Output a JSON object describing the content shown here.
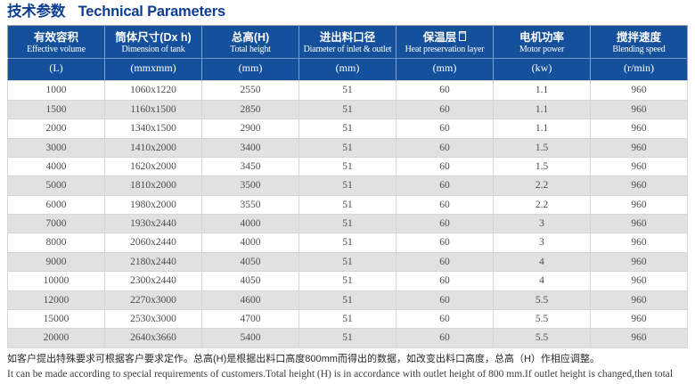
{
  "title": {
    "zh": "技术参数",
    "en": "Technical Parameters"
  },
  "table": {
    "columns": [
      {
        "zh": "有效容积",
        "en": "Effective volume",
        "unit": "(L)",
        "missing_glyph": false
      },
      {
        "zh": "筒体尺寸(Dx h)",
        "en": "Dimension of tank",
        "unit": "(mmxmm)",
        "missing_glyph": false
      },
      {
        "zh": "总高(H)",
        "en": "Total height",
        "unit": "(mm)",
        "missing_glyph": false
      },
      {
        "zh": "进出料口径",
        "en": "Diameter of inlet & outlet",
        "unit": "(mm)",
        "missing_glyph": false
      },
      {
        "zh": "保温层",
        "en": "Heat preservation layer",
        "unit": "(mm)",
        "missing_glyph": true
      },
      {
        "zh": "电机功率",
        "en": "Motor power",
        "unit": "(kw)",
        "missing_glyph": false
      },
      {
        "zh": "搅拌速度",
        "en": "Blending speed",
        "unit": "(r/min)",
        "missing_glyph": false
      }
    ],
    "rows": [
      [
        "1000",
        "1060x1220",
        "2550",
        "51",
        "60",
        "1.1",
        "960"
      ],
      [
        "1500",
        "1160x1500",
        "2850",
        "51",
        "60",
        "1.1",
        "960"
      ],
      [
        "2000",
        "1340x1500",
        "2900",
        "51",
        "60",
        "1.1",
        "960"
      ],
      [
        "3000",
        "1410x2000",
        "3400",
        "51",
        "60",
        "1.5",
        "960"
      ],
      [
        "4000",
        "1620x2000",
        "3450",
        "51",
        "60",
        "1.5",
        "960"
      ],
      [
        "5000",
        "1810x2000",
        "3500",
        "51",
        "60",
        "2.2",
        "960"
      ],
      [
        "6000",
        "1980x2000",
        "3550",
        "51",
        "60",
        "2.2",
        "960"
      ],
      [
        "7000",
        "1930x2440",
        "4000",
        "51",
        "60",
        "3",
        "960"
      ],
      [
        "8000",
        "2060x2440",
        "4000",
        "51",
        "60",
        "3",
        "960"
      ],
      [
        "9000",
        "2180x2440",
        "4050",
        "51",
        "60",
        "4",
        "960"
      ],
      [
        "10000",
        "2300x2440",
        "4050",
        "51",
        "60",
        "4",
        "960"
      ],
      [
        "12000",
        "2270x3000",
        "4600",
        "51",
        "60",
        "5.5",
        "960"
      ],
      [
        "15000",
        "2530x3000",
        "4700",
        "51",
        "60",
        "5.5",
        "960"
      ],
      [
        "20000",
        "2640x3660",
        "5400",
        "51",
        "60",
        "5.5",
        "960"
      ]
    ]
  },
  "notes": {
    "zh": "如客户提出特殊要求可根据客户要求定作。总高(H)是根据出料口高度800mm而得出的数据，如改变出料口高度，总高（H）作相应调整。",
    "en": "It can be made according to special requirements of customers.Total height (H) is in accordance with outlet height of 800 mm.If outlet height is changed,then total height (H) shall also be adjusted."
  },
  "colors": {
    "header_bg": "#14509b",
    "title_text": "#0c3e92",
    "row_alt": "#e1e1e1",
    "body_text": "#4d4d4d"
  }
}
